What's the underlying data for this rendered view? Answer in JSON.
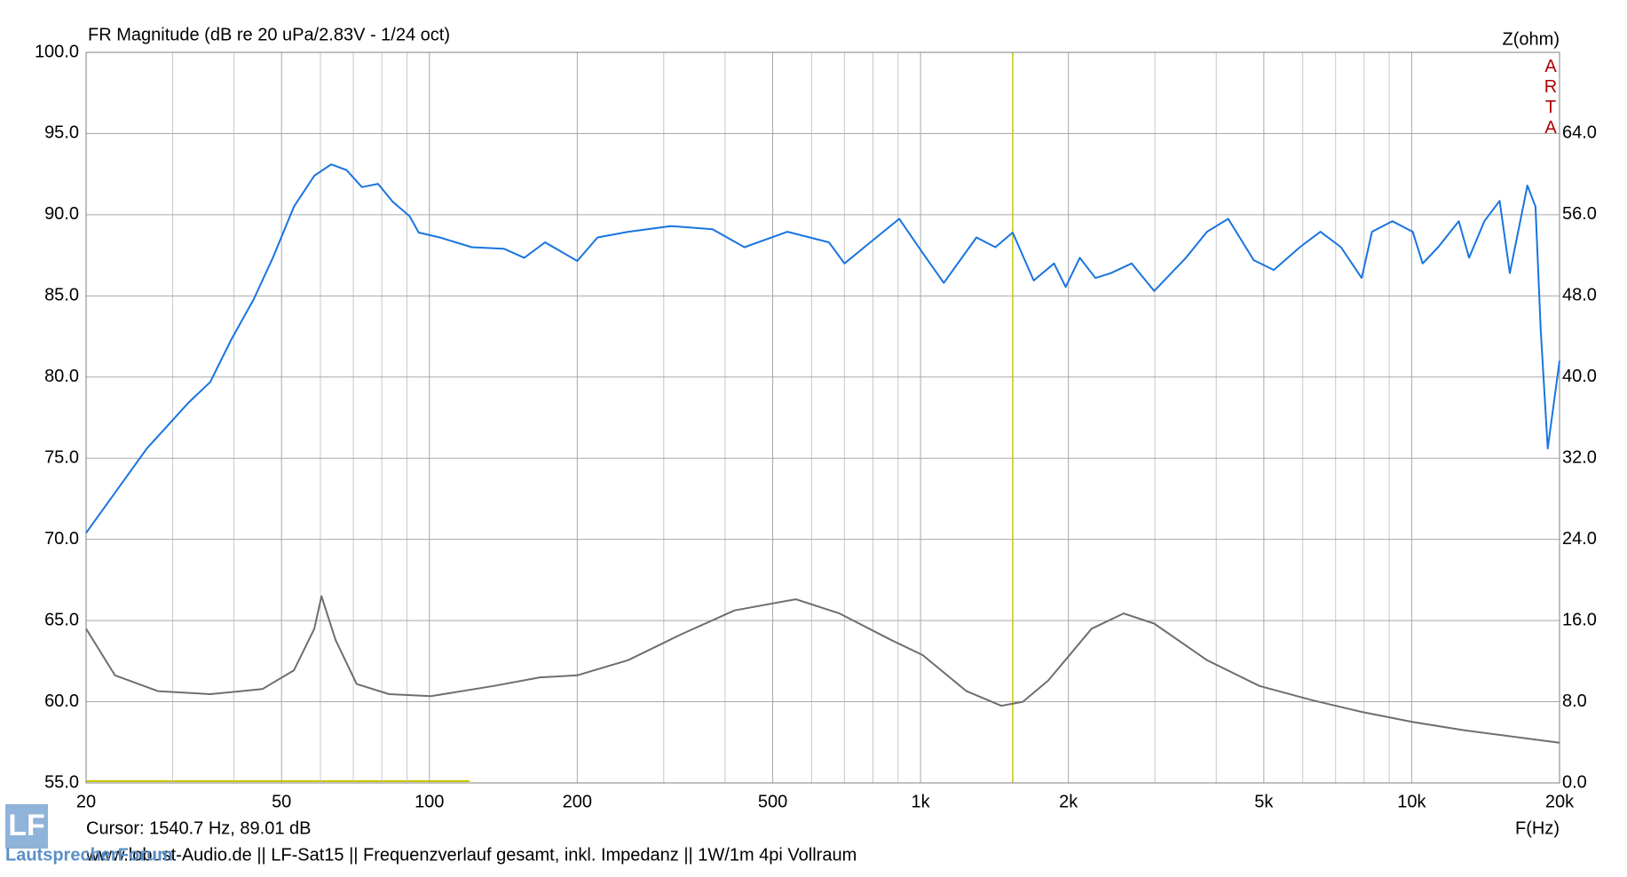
{
  "chart_data": {
    "type": "line",
    "title": "FR Magnitude (dB re 20 uPa/2.83V - 1/24 oct)",
    "y2_label": "Z(ohm)",
    "x_label": "F(Hz)",
    "watermark": "ARTA",
    "cursor_text": "Cursor: 1540.7 Hz, 89.01 dB",
    "cursor_x": 1540.7,
    "footer": "www.lobust-Audio.de  ||  LF-Sat15  ||  Frequenzverlauf gesamt, inkl. Impedanz  ||  1W/1m 4pi Vollraum",
    "logo": "LF",
    "logo_text": "LautsprecherForum",
    "xscale": "log",
    "xlim": [
      20,
      20000
    ],
    "xticks": [
      20,
      50,
      100,
      200,
      500,
      {
        "value": 1000,
        "label": "1k"
      },
      {
        "value": 2000,
        "label": "2k"
      },
      {
        "value": 5000,
        "label": "5k"
      },
      {
        "value": 10000,
        "label": "10k"
      },
      {
        "value": 20000,
        "label": "20k"
      }
    ],
    "x_minor_grid": [
      30,
      40,
      60,
      70,
      80,
      90,
      300,
      400,
      600,
      700,
      800,
      900,
      3000,
      4000,
      6000,
      7000,
      8000,
      9000
    ],
    "ylim": [
      55,
      100
    ],
    "yticks": [
      {
        "value": 55,
        "label": "55.0"
      },
      {
        "value": 60,
        "label": "60.0"
      },
      {
        "value": 65,
        "label": "65.0"
      },
      {
        "value": 70,
        "label": "70.0"
      },
      {
        "value": 75,
        "label": "75.0"
      },
      {
        "value": 80,
        "label": "80.0"
      },
      {
        "value": 85,
        "label": "85.0"
      },
      {
        "value": 90,
        "label": "90.0"
      },
      {
        "value": 95,
        "label": "95.0"
      },
      {
        "value": 100,
        "label": "100.0"
      }
    ],
    "y2lim": [
      0,
      72
    ],
    "y2ticks": [
      {
        "value": 0,
        "label": "0.0"
      },
      {
        "value": 8,
        "label": "8.0"
      },
      {
        "value": 16,
        "label": "16.0"
      },
      {
        "value": 24,
        "label": "24.0"
      },
      {
        "value": 32,
        "label": "32.0"
      },
      {
        "value": 40,
        "label": "40.0"
      },
      {
        "value": 48,
        "label": "48.0"
      },
      {
        "value": 56,
        "label": "56.0"
      },
      {
        "value": 64,
        "label": "64.0"
      }
    ],
    "grid": true,
    "series": [
      {
        "color": "#1874e0",
        "x": [
          20,
          26.6,
          32.4,
          35.8,
          39.5,
          43.9,
          48,
          53,
          58.3,
          63.1,
          67.8,
          72.9,
          78.6,
          84.2,
          91.2,
          95.1,
          105,
          122,
          142,
          156,
          172,
          200,
          220,
          254,
          310,
          377,
          438,
          536,
          651,
          700,
          790,
          905,
          1010,
          1115,
          1300,
          1420,
          1540,
          1700,
          1870,
          1975,
          2110,
          2270,
          2440,
          2690,
          2990,
          3470,
          3830,
          4230,
          4770,
          5240,
          5920,
          6520,
          7180,
          7910,
          8300,
          9130,
          10050,
          10530,
          11320,
          12470,
          13090,
          14060,
          15100,
          15840,
          17200,
          17870,
          18310,
          18920,
          20000
        ],
        "values": [
          70.4,
          75.6,
          78.45,
          79.7,
          82.3,
          84.8,
          87.35,
          90.5,
          92.4,
          93.1,
          92.75,
          91.7,
          91.9,
          90.8,
          89.9,
          88.9,
          88.6,
          88.0,
          87.9,
          87.35,
          88.3,
          87.15,
          88.6,
          88.95,
          89.3,
          89.1,
          88.0,
          88.95,
          88.3,
          87.0,
          88.3,
          89.75,
          87.65,
          85.8,
          88.6,
          88.0,
          88.9,
          85.95,
          87.0,
          85.55,
          87.35,
          86.1,
          86.4,
          87.0,
          85.3,
          87.35,
          88.95,
          89.75,
          87.2,
          86.6,
          88.0,
          88.95,
          88.0,
          86.1,
          88.95,
          89.6,
          88.95,
          87.0,
          88.0,
          89.6,
          87.35,
          89.6,
          90.85,
          86.4,
          91.8,
          90.5,
          82.9,
          75.6,
          81.0
        ]
      },
      {
        "color": "#6e6e6e",
        "axis": "y2",
        "x": [
          20,
          22.9,
          28,
          35.8,
          45.7,
          53,
          58.3,
          60.3,
          64.4,
          71.1,
          82.8,
          100.6,
          135,
          168,
          200,
          254,
          326,
          418,
          557,
          684,
          870,
          1010,
          1240,
          1460,
          1615,
          1820,
          2230,
          2590,
          2990,
          3830,
          4900,
          6270,
          7910,
          10050,
          12770,
          20000
        ],
        "values": [
          15.2,
          10.6,
          9.05,
          8.75,
          9.25,
          11.1,
          15.2,
          18.4,
          14.1,
          9.75,
          8.75,
          8.55,
          9.55,
          10.4,
          10.6,
          12.1,
          14.65,
          17.0,
          18.1,
          16.7,
          14.1,
          12.6,
          9.05,
          7.6,
          8.0,
          10.1,
          15.2,
          16.7,
          15.7,
          12.1,
          9.55,
          8.15,
          7.0,
          6.0,
          5.2,
          3.95
        ]
      }
    ]
  }
}
